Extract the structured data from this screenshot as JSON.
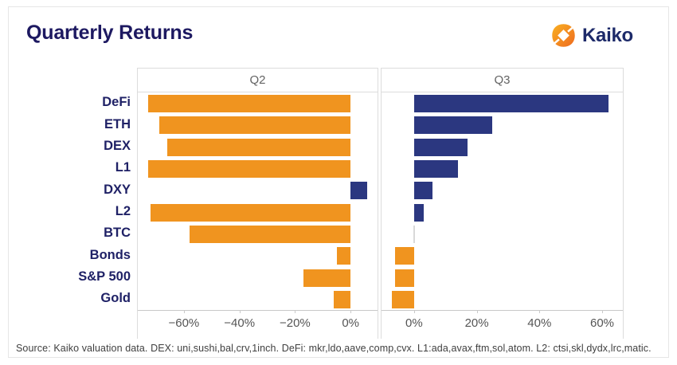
{
  "header": {
    "title": "Quarterly Returns",
    "brand": "Kaiko"
  },
  "footer": {
    "source": "Source: Kaiko valuation data. DEX: uni,sushi,bal,crv,1inch. DeFi: mkr,ldo,aave,comp,cvx. L1:ada,avax,ftm,sol,atom. L2: ctsi,skl,dydx,lrc,matic."
  },
  "colors": {
    "positive_bar": "#2B3780",
    "negative_bar": "#F0941F",
    "zero_bar": "#D9D9D9",
    "title_navy": "#1D1961",
    "category_label_navy": "#1F2166",
    "facet_label_gray": "#636363",
    "tick_label_gray": "#555555",
    "logo_orange_light": "#F9A825",
    "logo_orange_dark": "#EE6C1E"
  },
  "chart_data": {
    "type": "bar",
    "orientation": "horizontal",
    "title": "Quarterly Returns",
    "value_unit": "%",
    "grid": false,
    "legend": "none (facet titles Q2 / Q3)",
    "categories": [
      "DeFi",
      "ETH",
      "DEX",
      "L1",
      "DXY",
      "L2",
      "BTC",
      "Bonds",
      "S&P 500",
      "Gold"
    ],
    "series": [
      {
        "name": "Q2",
        "values": [
          -73,
          -69,
          -66,
          -73,
          6,
          -72,
          -58,
          -5,
          -17,
          -6
        ],
        "axis": {
          "min": -76.6,
          "max": 9.7,
          "ticks": [
            {
              "value": -60,
              "label": "−60%"
            },
            {
              "value": -40,
              "label": "−40%"
            },
            {
              "value": -20,
              "label": "−20%"
            },
            {
              "value": 0,
              "label": "0%"
            }
          ]
        }
      },
      {
        "name": "Q3",
        "values": [
          62,
          25,
          17,
          14,
          6,
          3,
          0,
          -6,
          -6,
          -7
        ],
        "axis": {
          "min": -10.4,
          "max": 66.6,
          "ticks": [
            {
              "value": 0,
              "label": "0%"
            },
            {
              "value": 20,
              "label": "20%"
            },
            {
              "value": 40,
              "label": "40%"
            },
            {
              "value": 60,
              "label": "60%"
            }
          ]
        }
      }
    ]
  }
}
